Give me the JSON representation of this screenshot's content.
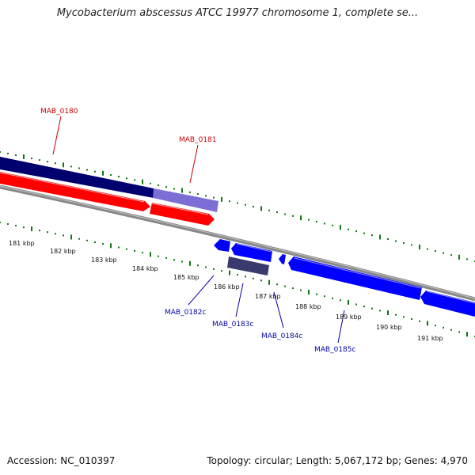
{
  "title": "Mycobacterium abscessus ATCC 19977 chromosome 1, complete se...",
  "footer": {
    "accession": "Accession: NC_010397",
    "summary": "Topology: circular; Length: 5,067,172 bp; Genes: 4,970"
  },
  "colors": {
    "forward_cds": "#ff0000",
    "reverse_cds": "#0000ff",
    "selected_forward": "#00006e",
    "selected_forward_light": "#7b6fd6",
    "selected_reverse_dark": "#3a3a6e",
    "backbone": "#888888",
    "ticks": "#117711",
    "forward_label": "#cc0000",
    "reverse_label": "#0000aa"
  },
  "axis": {
    "tick_labels": [
      "181 kbp",
      "182 kbp",
      "183 kbp",
      "184 kbp",
      "185 kbp",
      "186 kbp",
      "187 kbp",
      "188 kbp",
      "189 kbp",
      "190 kbp",
      "191 kbp"
    ]
  },
  "gene_labels": {
    "forward": [
      "MAB_0180",
      "MAB_0181"
    ],
    "reverse": [
      "MAB_0182c",
      "MAB_0183c",
      "MAB_0184c",
      "MAB_0185c"
    ]
  }
}
